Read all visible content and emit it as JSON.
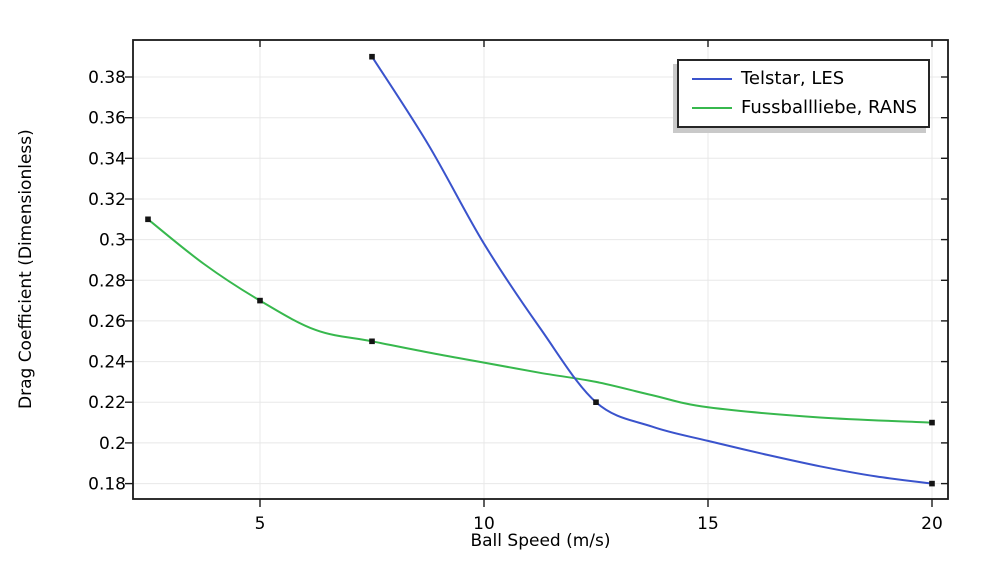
{
  "chart_data": {
    "type": "line",
    "title": "",
    "xlabel": "Ball Speed (m/s)",
    "ylabel": "Drag Coefficient (Dimensionless)",
    "xlim": [
      2.165,
      20.357
    ],
    "ylim": [
      0.1724,
      0.3982
    ],
    "x_ticks": [
      5,
      10,
      15,
      20
    ],
    "y_ticks": [
      0.18,
      0.2,
      0.22,
      0.24,
      0.26,
      0.28,
      0.3,
      0.32,
      0.34,
      0.36,
      0.38
    ],
    "grid": true,
    "grid_color": "#e8e8e8",
    "frame_color": "#1a1a1a",
    "marker_color": "#141414",
    "legend_position": "top-right",
    "series": [
      {
        "name": "Telstar, LES",
        "color": "#3a53cc",
        "marker": "square",
        "data_points": [
          [
            7.5,
            0.39
          ],
          [
            12.5,
            0.22
          ],
          [
            20,
            0.18
          ]
        ],
        "curve_samples": [
          [
            7.5,
            0.39
          ],
          [
            8.75,
            0.347
          ],
          [
            10,
            0.298
          ],
          [
            11.25,
            0.2565
          ],
          [
            12.5,
            0.22
          ],
          [
            13.75,
            0.208
          ],
          [
            15,
            0.201
          ],
          [
            16.25,
            0.1945
          ],
          [
            17.5,
            0.1885
          ],
          [
            18.75,
            0.1835
          ],
          [
            20,
            0.18
          ]
        ]
      },
      {
        "name": "Fussballliebe, RANS",
        "color": "#37b84d",
        "marker": "square",
        "data_points": [
          [
            2.5,
            0.31
          ],
          [
            5,
            0.27
          ],
          [
            7.5,
            0.25
          ],
          [
            20,
            0.21
          ]
        ],
        "curve_samples": [
          [
            2.5,
            0.31
          ],
          [
            3.75,
            0.288
          ],
          [
            5,
            0.27
          ],
          [
            6.25,
            0.2555
          ],
          [
            7.5,
            0.25
          ],
          [
            8.75,
            0.2445
          ],
          [
            10,
            0.2395
          ],
          [
            11.25,
            0.2345
          ],
          [
            12.5,
            0.23
          ],
          [
            13.75,
            0.2235
          ],
          [
            15,
            0.2175
          ],
          [
            17.5,
            0.2125
          ],
          [
            20,
            0.21
          ]
        ]
      }
    ]
  }
}
